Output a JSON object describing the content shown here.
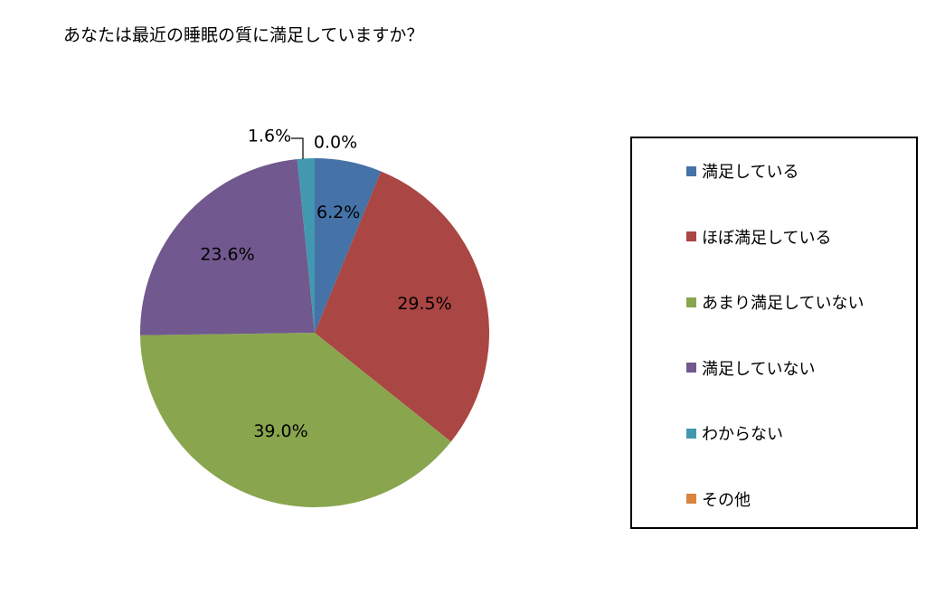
{
  "title": "あなたは最近の睡眠の質に満足していますか？",
  "chart_data": {
    "type": "pie",
    "categories": [
      "満足している",
      "ほぼ満足している",
      "あまり満足していない",
      "満足していない",
      "わからない",
      "その他"
    ],
    "values": [
      6.2,
      29.5,
      39.0,
      23.6,
      1.6,
      0.0
    ],
    "labels": [
      "6.2%",
      "29.5%",
      "39.0%",
      "23.6%",
      "1.6%",
      "0.0%"
    ],
    "colors": [
      "#4572a7",
      "#aa4643",
      "#89a54e",
      "#71588f",
      "#4198af",
      "#db843d"
    ],
    "legend": "right",
    "start_angle": "12 o'clock",
    "direction": "clockwise"
  }
}
